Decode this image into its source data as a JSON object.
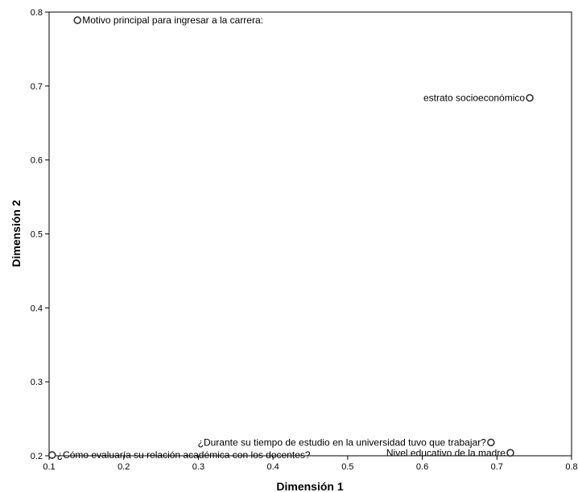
{
  "chart_data": {
    "type": "scatter",
    "title": "",
    "xlabel": "Dimensión 1",
    "ylabel": "Dimensión 2",
    "xlim": [
      0.1,
      0.8
    ],
    "ylim": [
      0.2,
      0.8
    ],
    "xticks": [
      0.1,
      0.2,
      0.3,
      0.4,
      0.5,
      0.6,
      0.7,
      0.8
    ],
    "yticks": [
      0.2,
      0.3,
      0.4,
      0.5,
      0.6,
      0.7,
      0.8
    ],
    "xtick_labels": [
      "0.1",
      "0.2",
      "0.3",
      "0.4",
      "0.5",
      "0.6",
      "0.7",
      "0.8"
    ],
    "ytick_labels": [
      "0.2",
      "0.3",
      "0.4",
      "0.5",
      "0.6",
      "0.7",
      "0.8"
    ],
    "grid": false,
    "points": [
      {
        "label": "Motivo principal para ingresar a la carrera:",
        "x": 0.138,
        "y": 0.789,
        "label_side": "right"
      },
      {
        "label": "estrato socioeconómico",
        "x": 0.744,
        "y": 0.684,
        "label_side": "left"
      },
      {
        "label": "¿Durante su tiempo de estudio en la universidad tuvo que trabajar?",
        "x": 0.692,
        "y": 0.218,
        "label_side": "left"
      },
      {
        "label": "Nivel educativo de la madre",
        "x": 0.718,
        "y": 0.204,
        "label_side": "left"
      },
      {
        "label": "¿Cómo evaluaría su relación académica con los docentes?",
        "x": 0.104,
        "y": 0.201,
        "label_side": "right"
      }
    ]
  }
}
